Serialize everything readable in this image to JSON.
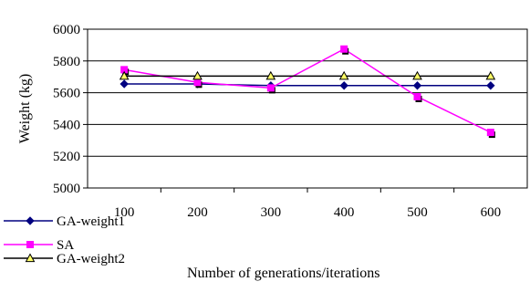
{
  "chart_data": {
    "type": "line",
    "title": "",
    "xlabel": "Number of generations/iterations",
    "ylabel": "Weight (kg)",
    "ylim": [
      5000,
      6000
    ],
    "yticks": [
      5000,
      5200,
      5400,
      5600,
      5800,
      6000
    ],
    "categories": [
      "100",
      "200",
      "300",
      "400",
      "500",
      "600"
    ],
    "grid": "horizontal",
    "legend_position": "bottom-left",
    "series": [
      {
        "name": "GA-weight1",
        "values": [
          5655,
          5655,
          5645,
          5645,
          5645,
          5645
        ],
        "color": "#000080",
        "marker": "diamond"
      },
      {
        "name": "SA",
        "values": [
          5745,
          5665,
          5630,
          5875,
          5575,
          5350
        ],
        "color": "#ff00ff",
        "marker": "square"
      },
      {
        "name": "GA-weight2",
        "values": [
          5705,
          5705,
          5705,
          5705,
          5705,
          5705
        ],
        "color": "#000000",
        "marker": "triangle"
      }
    ]
  }
}
